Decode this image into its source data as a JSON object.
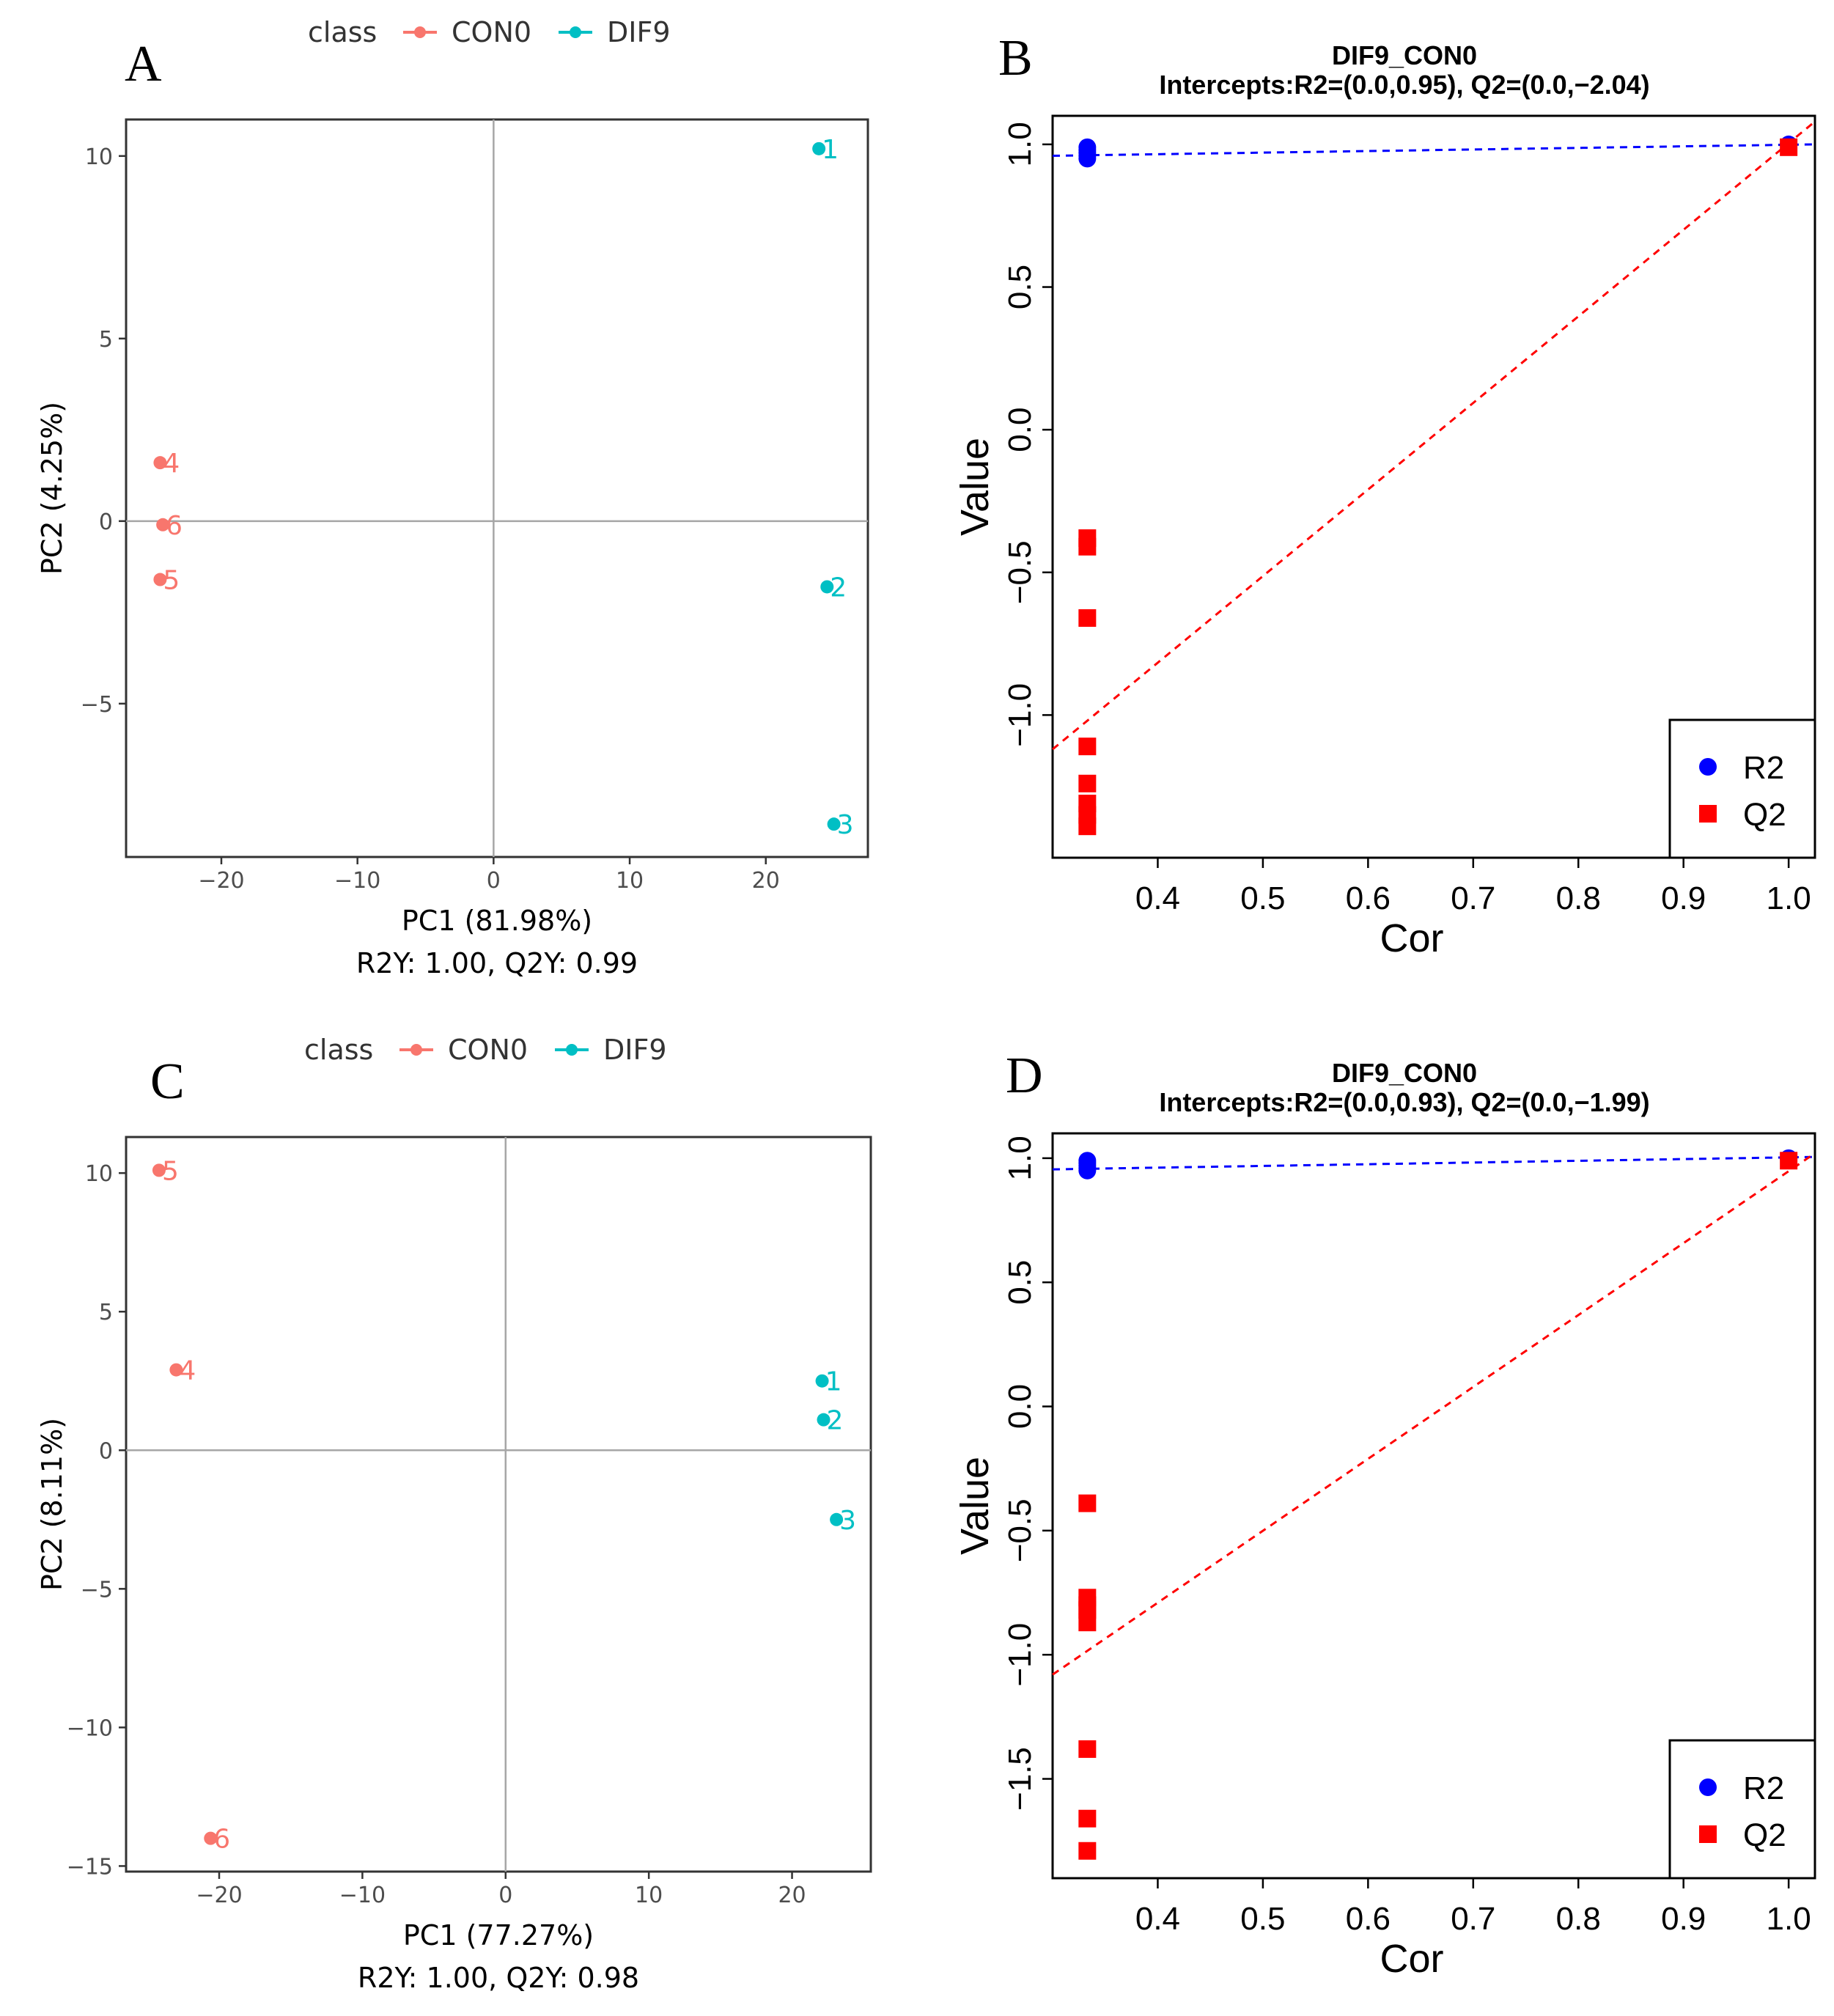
{
  "figure_labels": {
    "A": "A",
    "B": "B",
    "C": "C",
    "D": "D"
  },
  "chart_data": [
    {
      "panel": "A",
      "type": "scatter",
      "legend_title": "class",
      "legend_entries": [
        "CON0",
        "DIF9"
      ],
      "colors": {
        "CON0": "#F8766D",
        "DIF9": "#00BFC4"
      },
      "xlabel": "PC1 (81.98%)",
      "subtitle": "R2Y: 1.00, Q2Y: 0.99",
      "ylabel": "PC2 (4.25%)",
      "xlim": [
        -27,
        27.5
      ],
      "ylim": [
        -9.2,
        11
      ],
      "xticks": [
        -20,
        -10,
        0,
        10,
        20
      ],
      "yticks": [
        10,
        5,
        0,
        -5
      ],
      "xtick_labels": [
        "−20",
        "−10",
        "0",
        "10",
        "20"
      ],
      "ytick_labels": [
        "10",
        "5",
        "0",
        "−5"
      ],
      "points": [
        {
          "label": "1",
          "class": "DIF9",
          "x": 23.9,
          "y": 10.2
        },
        {
          "label": "2",
          "class": "DIF9",
          "x": 24.5,
          "y": -1.8
        },
        {
          "label": "3",
          "class": "DIF9",
          "x": 25.0,
          "y": -8.3
        },
        {
          "label": "4",
          "class": "CON0",
          "x": -24.5,
          "y": 1.6
        },
        {
          "label": "6",
          "class": "CON0",
          "x": -24.3,
          "y": -0.1
        },
        {
          "label": "5",
          "class": "CON0",
          "x": -24.5,
          "y": -1.6
        }
      ]
    },
    {
      "panel": "B",
      "type": "scatter",
      "title": "DIF9_CON0",
      "subtitle": "Intercepts:R2=(0.0,0.95), Q2=(0.0,−2.04)",
      "xlabel": "Cor",
      "ylabel": "Value",
      "xlim": [
        0.3,
        1.025
      ],
      "ylim": [
        -1.5,
        1.1
      ],
      "xticks": [
        0.4,
        0.5,
        0.6,
        0.7,
        0.8,
        0.9,
        1.0
      ],
      "yticks": [
        1.0,
        0.5,
        0.0,
        -0.5,
        -1.0
      ],
      "xtick_labels": [
        "0.4",
        "0.5",
        "0.6",
        "0.7",
        "0.8",
        "0.9",
        "1.0"
      ],
      "ytick_labels": [
        "1.0",
        "0.5",
        "0.0",
        "−0.5",
        "−1.0"
      ],
      "legend_entries": [
        "R2",
        "Q2"
      ],
      "colors": {
        "R2": "#0000FF",
        "Q2": "#FF0000"
      },
      "r2_points": {
        "x": [
          0.333,
          0.333,
          0.333,
          0.333,
          0.333,
          1.0
        ],
        "y": [
          0.99,
          0.98,
          0.97,
          0.96,
          0.95,
          1.0
        ]
      },
      "q2_points": {
        "x": [
          0.333,
          0.333,
          0.333,
          0.333,
          0.333,
          0.333,
          0.333,
          0.333,
          1.0
        ],
        "y": [
          -0.38,
          -0.41,
          -0.66,
          -1.11,
          -1.24,
          -1.31,
          -1.35,
          -1.39,
          0.99
        ]
      },
      "r2_line": {
        "x": [
          0.3,
          1.025
        ],
        "y": [
          0.96,
          1.0
        ]
      },
      "q2_line": {
        "x": [
          0.3,
          1.025
        ],
        "y": [
          -1.12,
          1.08
        ]
      }
    },
    {
      "panel": "C",
      "type": "scatter",
      "legend_title": "class",
      "legend_entries": [
        "CON0",
        "DIF9"
      ],
      "colors": {
        "CON0": "#F8766D",
        "DIF9": "#00BFC4"
      },
      "xlabel": "PC1 (77.27%)",
      "subtitle": "R2Y: 1.00, Q2Y: 0.98",
      "ylabel": "PC2 (8.11%)",
      "xlim": [
        -26.5,
        25.5
      ],
      "ylim": [
        -15.2,
        11.3
      ],
      "xticks": [
        -20,
        -10,
        0,
        10,
        20
      ],
      "yticks": [
        10,
        5,
        0,
        -5,
        -10,
        -15
      ],
      "xtick_labels": [
        "−20",
        "−10",
        "0",
        "10",
        "20"
      ],
      "ytick_labels": [
        "10",
        "5",
        "0",
        "−5",
        "−10",
        "−15"
      ],
      "points": [
        {
          "label": "5",
          "class": "CON0",
          "x": -24.2,
          "y": 10.1
        },
        {
          "label": "4",
          "class": "CON0",
          "x": -23.0,
          "y": 2.9
        },
        {
          "label": "6",
          "class": "CON0",
          "x": -20.6,
          "y": -14.0
        },
        {
          "label": "1",
          "class": "DIF9",
          "x": 22.1,
          "y": 2.5
        },
        {
          "label": "2",
          "class": "DIF9",
          "x": 22.2,
          "y": 1.1
        },
        {
          "label": "3",
          "class": "DIF9",
          "x": 23.1,
          "y": -2.5
        }
      ]
    },
    {
      "panel": "D",
      "type": "scatter",
      "title": "DIF9_CON0",
      "subtitle": "Intercepts:R2=(0.0,0.93), Q2=(0.0,−1.99)",
      "xlabel": "Cor",
      "ylabel": "Value",
      "xlim": [
        0.3,
        1.025
      ],
      "ylim": [
        -1.9,
        1.1
      ],
      "xticks": [
        0.4,
        0.5,
        0.6,
        0.7,
        0.8,
        0.9,
        1.0
      ],
      "yticks": [
        1.0,
        0.5,
        0.0,
        -0.5,
        -1.0,
        -1.5
      ],
      "xtick_labels": [
        "0.4",
        "0.5",
        "0.6",
        "0.7",
        "0.8",
        "0.9",
        "1.0"
      ],
      "ytick_labels": [
        "1.0",
        "0.5",
        "0.0",
        "−0.5",
        "−1.0",
        "−1.5"
      ],
      "legend_entries": [
        "R2",
        "Q2"
      ],
      "colors": {
        "R2": "#0000FF",
        "Q2": "#FF0000"
      },
      "r2_points": {
        "x": [
          0.333,
          0.333,
          0.333,
          0.333,
          0.333,
          1.0
        ],
        "y": [
          0.99,
          0.98,
          0.97,
          0.96,
          0.95,
          1.0
        ]
      },
      "q2_points": {
        "x": [
          0.333,
          0.333,
          0.333,
          0.333,
          0.333,
          0.333,
          0.333,
          0.333,
          1.0
        ],
        "y": [
          -0.39,
          -0.77,
          -0.82,
          -0.87,
          -1.38,
          -1.66,
          -1.79,
          -0.8,
          0.99
        ]
      },
      "r2_line": {
        "x": [
          0.3,
          1.025
        ],
        "y": [
          0.955,
          1.005
        ]
      },
      "q2_line": {
        "x": [
          0.3,
          1.025
        ],
        "y": [
          -1.08,
          1.02
        ]
      }
    }
  ]
}
